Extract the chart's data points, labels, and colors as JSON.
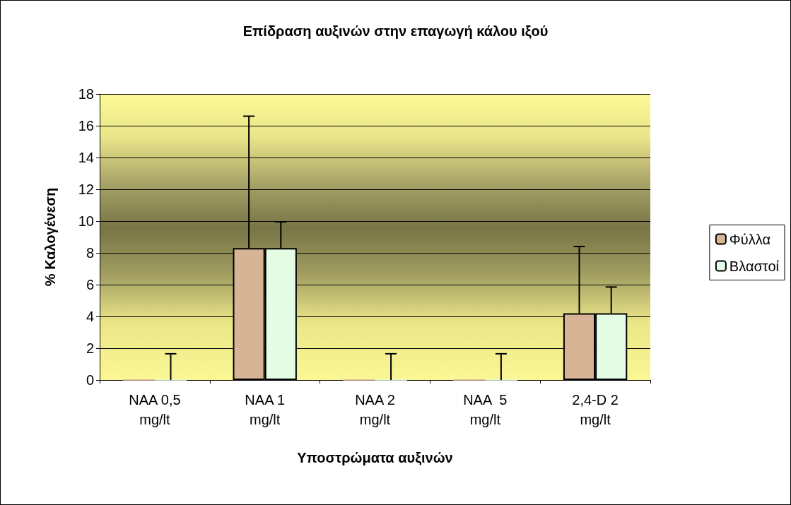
{
  "chart_data": {
    "type": "bar",
    "title": "Επίδραση αυξινών στην επαγωγή κάλου ιξού",
    "xlabel": "Υποστρώματα αυξινών",
    "ylabel": "% Καλογένεση",
    "categories": [
      "NAA 0,5 mg/lt",
      "NAA 1 mg/lt",
      "NAA 2 mg/lt",
      "NAA  5 mg/lt",
      "2,4-D 2 mg/lt"
    ],
    "series": [
      {
        "name": "Φύλλα",
        "color": "#d8b496",
        "values": [
          0,
          8.3,
          0,
          0,
          4.2
        ],
        "errors": [
          null,
          [
            8.3,
            16.6
          ],
          null,
          null,
          [
            4.2,
            8.4
          ]
        ]
      },
      {
        "name": "Βλαστοί",
        "color": "#e4fde4",
        "values": [
          0,
          8.3,
          0,
          0,
          4.2
        ],
        "errors": [
          [
            0,
            1.65
          ],
          [
            8.3,
            9.95
          ],
          [
            0,
            1.65
          ],
          [
            0,
            1.65
          ],
          [
            4.2,
            5.85
          ]
        ]
      }
    ],
    "ylim": [
      0,
      18
    ],
    "yticks": [
      0,
      2,
      4,
      6,
      8,
      10,
      12,
      14,
      16,
      18
    ],
    "grid": "y",
    "legend": "right"
  }
}
